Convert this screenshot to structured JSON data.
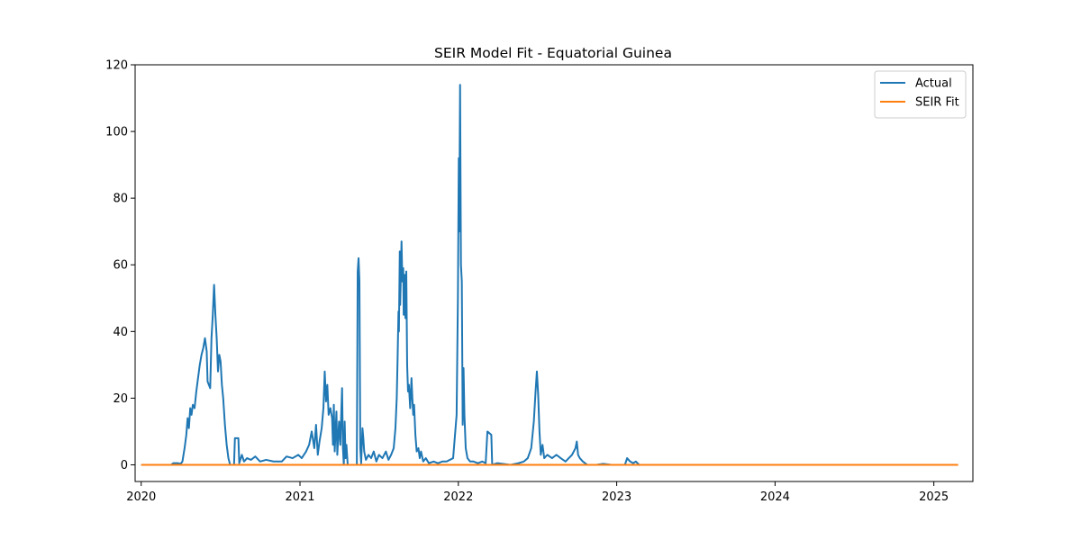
{
  "chart_data": {
    "type": "line",
    "title": "SEIR Model Fit - Equatorial Guinea",
    "xlabel": "",
    "ylabel": "",
    "xlim": [
      "2019-12-18",
      "2025-04-01"
    ],
    "ylim": [
      -5,
      120
    ],
    "x_ticks": [
      "2020",
      "2021",
      "2022",
      "2023",
      "2024",
      "2025"
    ],
    "y_ticks": [
      "0",
      "20",
      "40",
      "60",
      "80",
      "100",
      "120"
    ],
    "grid": false,
    "legend": "top-right",
    "series": [
      {
        "name": "Actual",
        "color": "#1f77b4",
        "points": [
          [
            "2020-01-03",
            0
          ],
          [
            "2020-03-10",
            0
          ],
          [
            "2020-03-15",
            0.5
          ],
          [
            "2020-03-25",
            0.5
          ],
          [
            "2020-04-01",
            0.3
          ],
          [
            "2020-04-05",
            1
          ],
          [
            "2020-04-10",
            5
          ],
          [
            "2020-04-14",
            9
          ],
          [
            "2020-04-17",
            14
          ],
          [
            "2020-04-20",
            11
          ],
          [
            "2020-04-23",
            17
          ],
          [
            "2020-04-26",
            15
          ],
          [
            "2020-04-29",
            18
          ],
          [
            "2020-05-03",
            17
          ],
          [
            "2020-05-07",
            22
          ],
          [
            "2020-05-11",
            26
          ],
          [
            "2020-05-15",
            30
          ],
          [
            "2020-05-19",
            33
          ],
          [
            "2020-05-23",
            35
          ],
          [
            "2020-05-27",
            38
          ],
          [
            "2020-05-31",
            34
          ],
          [
            "2020-06-02",
            25
          ],
          [
            "2020-06-05",
            24
          ],
          [
            "2020-06-08",
            23
          ],
          [
            "2020-06-11",
            38
          ],
          [
            "2020-06-14",
            45
          ],
          [
            "2020-06-17",
            54
          ],
          [
            "2020-06-20",
            45
          ],
          [
            "2020-06-23",
            38
          ],
          [
            "2020-06-26",
            28
          ],
          [
            "2020-06-29",
            33
          ],
          [
            "2020-07-02",
            31
          ],
          [
            "2020-07-05",
            24
          ],
          [
            "2020-07-08",
            20
          ],
          [
            "2020-07-12",
            12
          ],
          [
            "2020-07-16",
            6
          ],
          [
            "2020-07-20",
            2
          ],
          [
            "2020-07-24",
            0
          ],
          [
            "2020-08-02",
            0
          ],
          [
            "2020-08-04",
            8
          ],
          [
            "2020-08-12",
            8
          ],
          [
            "2020-08-14",
            0.5
          ],
          [
            "2020-08-20",
            3
          ],
          [
            "2020-08-25",
            1
          ],
          [
            "2020-09-01",
            2
          ],
          [
            "2020-09-10",
            1.5
          ],
          [
            "2020-09-20",
            2.5
          ],
          [
            "2020-10-01",
            1
          ],
          [
            "2020-10-15",
            1.5
          ],
          [
            "2020-11-01",
            1
          ],
          [
            "2020-11-20",
            1
          ],
          [
            "2020-12-01",
            2.5
          ],
          [
            "2020-12-15",
            2
          ],
          [
            "2020-12-28",
            3
          ],
          [
            "2021-01-05",
            2
          ],
          [
            "2021-01-15",
            4
          ],
          [
            "2021-01-22",
            6
          ],
          [
            "2021-01-28",
            10
          ],
          [
            "2021-02-03",
            5
          ],
          [
            "2021-02-07",
            12
          ],
          [
            "2021-02-11",
            3
          ],
          [
            "2021-02-15",
            7
          ],
          [
            "2021-02-20",
            11
          ],
          [
            "2021-02-24",
            17
          ],
          [
            "2021-02-27",
            28
          ],
          [
            "2021-03-02",
            19
          ],
          [
            "2021-03-05",
            24
          ],
          [
            "2021-03-08",
            15
          ],
          [
            "2021-03-12",
            17
          ],
          [
            "2021-03-16",
            14
          ],
          [
            "2021-03-18",
            6
          ],
          [
            "2021-03-20",
            18
          ],
          [
            "2021-03-22",
            4
          ],
          [
            "2021-03-26",
            16
          ],
          [
            "2021-03-28",
            3
          ],
          [
            "2021-04-01",
            13
          ],
          [
            "2021-04-04",
            6
          ],
          [
            "2021-04-06",
            15
          ],
          [
            "2021-04-08",
            23
          ],
          [
            "2021-04-10",
            5
          ],
          [
            "2021-04-12",
            0
          ],
          [
            "2021-04-14",
            13
          ],
          [
            "2021-04-16",
            2
          ],
          [
            "2021-04-18",
            6
          ],
          [
            "2021-04-21",
            0
          ],
          [
            "2021-05-12",
            0
          ],
          [
            "2021-05-14",
            58
          ],
          [
            "2021-05-16",
            62
          ],
          [
            "2021-05-18",
            55
          ],
          [
            "2021-05-20",
            5
          ],
          [
            "2021-05-22",
            0.5
          ],
          [
            "2021-05-25",
            11
          ],
          [
            "2021-05-27",
            8
          ],
          [
            "2021-05-29",
            4
          ],
          [
            "2021-06-02",
            1.5
          ],
          [
            "2021-06-08",
            3
          ],
          [
            "2021-06-14",
            2
          ],
          [
            "2021-06-20",
            4
          ],
          [
            "2021-06-26",
            1
          ],
          [
            "2021-07-02",
            3
          ],
          [
            "2021-07-10",
            2
          ],
          [
            "2021-07-18",
            4
          ],
          [
            "2021-07-24",
            1.5
          ],
          [
            "2021-07-30",
            3
          ],
          [
            "2021-08-05",
            5
          ],
          [
            "2021-08-09",
            11
          ],
          [
            "2021-08-12",
            20
          ],
          [
            "2021-08-14",
            32
          ],
          [
            "2021-08-16",
            46
          ],
          [
            "2021-08-17",
            40
          ],
          [
            "2021-08-19",
            64
          ],
          [
            "2021-08-20",
            48
          ],
          [
            "2021-08-22",
            60
          ],
          [
            "2021-08-23",
            67
          ],
          [
            "2021-08-25",
            55
          ],
          [
            "2021-08-27",
            59
          ],
          [
            "2021-08-28",
            45
          ],
          [
            "2021-08-30",
            57
          ],
          [
            "2021-09-01",
            44
          ],
          [
            "2021-09-03",
            58
          ],
          [
            "2021-09-05",
            30
          ],
          [
            "2021-09-07",
            22
          ],
          [
            "2021-09-09",
            24
          ],
          [
            "2021-09-12",
            17
          ],
          [
            "2021-09-15",
            26
          ],
          [
            "2021-09-17",
            20
          ],
          [
            "2021-09-19",
            15
          ],
          [
            "2021-09-21",
            18
          ],
          [
            "2021-09-24",
            9
          ],
          [
            "2021-09-27",
            4
          ],
          [
            "2021-10-01",
            5
          ],
          [
            "2021-10-04",
            2
          ],
          [
            "2021-10-07",
            4
          ],
          [
            "2021-10-12",
            1
          ],
          [
            "2021-10-18",
            2
          ],
          [
            "2021-10-25",
            0.5
          ],
          [
            "2021-11-05",
            1
          ],
          [
            "2021-11-15",
            0.5
          ],
          [
            "2021-11-25",
            1
          ],
          [
            "2021-12-05",
            1
          ],
          [
            "2021-12-20",
            2
          ],
          [
            "2021-12-28",
            15
          ],
          [
            "2021-12-31",
            50
          ],
          [
            "2022-01-02",
            92
          ],
          [
            "2022-01-03",
            70
          ],
          [
            "2022-01-05",
            114
          ],
          [
            "2022-01-07",
            60
          ],
          [
            "2022-01-09",
            55
          ],
          [
            "2022-01-11",
            12
          ],
          [
            "2022-01-13",
            29
          ],
          [
            "2022-01-15",
            15
          ],
          [
            "2022-01-18",
            5
          ],
          [
            "2022-01-22",
            2
          ],
          [
            "2022-01-28",
            1
          ],
          [
            "2022-02-05",
            1
          ],
          [
            "2022-02-15",
            0.5
          ],
          [
            "2022-02-25",
            1
          ],
          [
            "2022-03-05",
            0.5
          ],
          [
            "2022-03-09",
            10
          ],
          [
            "2022-03-18",
            9
          ],
          [
            "2022-03-20",
            0
          ],
          [
            "2022-04-01",
            0.5
          ],
          [
            "2022-05-01",
            0
          ],
          [
            "2022-05-20",
            0.5
          ],
          [
            "2022-06-01",
            1
          ],
          [
            "2022-06-10",
            2
          ],
          [
            "2022-06-18",
            5
          ],
          [
            "2022-06-24",
            13
          ],
          [
            "2022-06-28",
            22
          ],
          [
            "2022-07-01",
            28
          ],
          [
            "2022-07-04",
            21
          ],
          [
            "2022-07-07",
            10
          ],
          [
            "2022-07-10",
            3
          ],
          [
            "2022-07-14",
            6
          ],
          [
            "2022-07-18",
            2
          ],
          [
            "2022-07-25",
            3
          ],
          [
            "2022-08-05",
            2
          ],
          [
            "2022-08-15",
            3
          ],
          [
            "2022-08-25",
            2
          ],
          [
            "2022-09-05",
            1
          ],
          [
            "2022-09-20",
            3
          ],
          [
            "2022-09-28",
            5
          ],
          [
            "2022-10-01",
            7
          ],
          [
            "2022-10-04",
            3
          ],
          [
            "2022-10-08",
            2
          ],
          [
            "2022-10-15",
            1
          ],
          [
            "2022-10-25",
            0
          ],
          [
            "2022-11-15",
            0
          ],
          [
            "2022-12-01",
            0.3
          ],
          [
            "2022-12-20",
            0
          ],
          [
            "2023-01-20",
            0
          ],
          [
            "2023-01-25",
            2
          ],
          [
            "2023-02-01",
            1
          ],
          [
            "2023-02-08",
            0.5
          ],
          [
            "2023-02-14",
            1
          ],
          [
            "2023-02-22",
            0
          ]
        ]
      },
      {
        "name": "SEIR Fit",
        "color": "#ff7f0e",
        "points": [
          [
            "2020-01-03",
            0
          ],
          [
            "2025-02-24",
            0
          ]
        ]
      }
    ]
  }
}
